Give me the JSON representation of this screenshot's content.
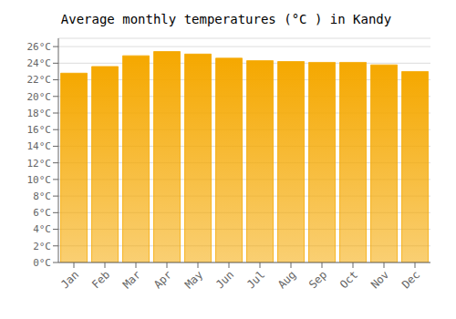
{
  "chart_data": {
    "type": "bar",
    "title": "Average monthly temperatures (°C ) in Kandy",
    "categories": [
      "Jan",
      "Feb",
      "Mar",
      "Apr",
      "May",
      "Jun",
      "Jul",
      "Aug",
      "Sep",
      "Oct",
      "Nov",
      "Dec"
    ],
    "values": [
      22.8,
      23.6,
      24.9,
      25.4,
      25.1,
      24.6,
      24.3,
      24.2,
      24.1,
      24.1,
      23.8,
      23.0
    ],
    "color": "#F5A800",
    "ylim": [
      0,
      27
    ],
    "yticks": [
      {
        "value": 0,
        "label": "0°C"
      },
      {
        "value": 2,
        "label": "2°C"
      },
      {
        "value": 4,
        "label": "4°C"
      },
      {
        "value": 6,
        "label": "6°C"
      },
      {
        "value": 8,
        "label": "8°C"
      },
      {
        "value": 10,
        "label": "10°C"
      },
      {
        "value": 12,
        "label": "12°C"
      },
      {
        "value": 14,
        "label": "14°C"
      },
      {
        "value": 16,
        "label": "16°C"
      },
      {
        "value": 18,
        "label": "18°C"
      },
      {
        "value": 20,
        "label": "20°C"
      },
      {
        "value": 22,
        "label": "22°C"
      },
      {
        "value": 24,
        "label": "24°C"
      },
      {
        "value": 26,
        "label": "26°C"
      }
    ],
    "grid": true
  }
}
